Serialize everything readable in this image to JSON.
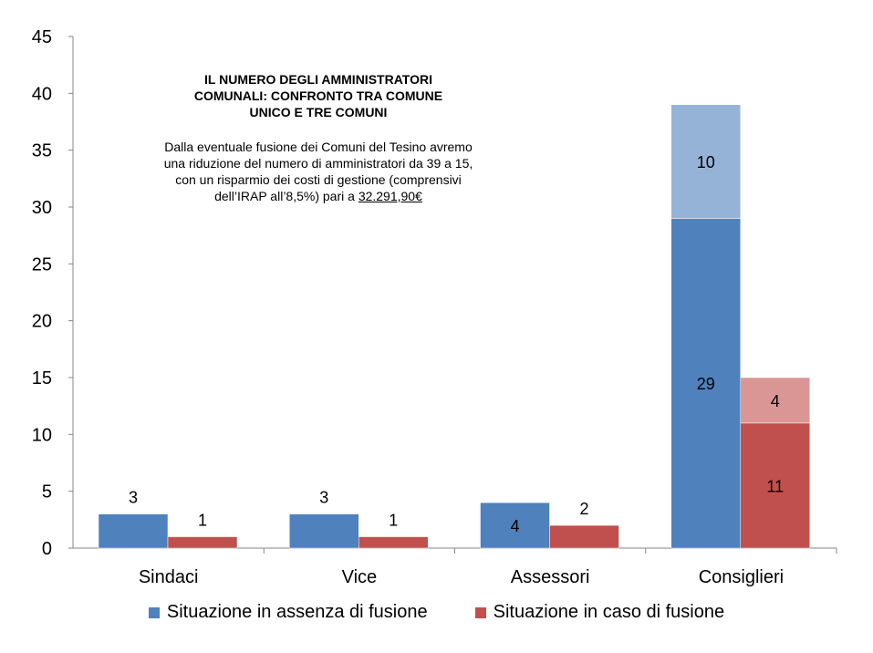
{
  "annotation": {
    "title": "IL NUMERO DEGLI AMMINISTRATORI COMUNALI: CONFRONTO TRA COMUNE UNICO E TRE COMUNI",
    "body": "Dalla eventuale fusione dei Comuni del Tesino avremo una riduzione del numero di amministratori da 39 a 15, con un risparmio dei costi di gestione (comprensivi dell’IRAP all’8,5%) pari a",
    "amount": "32.291,90€"
  },
  "colors": {
    "blue": "#4f81bd",
    "blue_light": "#95b3d7",
    "red": "#c0504d",
    "red_light": "#d99694",
    "axis": "#868686"
  },
  "chart_data": {
    "type": "bar",
    "stacked": true,
    "categories": [
      "Sindaci",
      "Vice",
      "Assessori",
      "Consiglieri"
    ],
    "ylim": [
      0,
      45
    ],
    "yticks": [
      0,
      5,
      10,
      15,
      20,
      25,
      30,
      35,
      40,
      45
    ],
    "grid": false,
    "legend_position": "bottom",
    "series": [
      {
        "name": "Situazione in assenza di fusione",
        "color": "#4f81bd",
        "segments": [
          {
            "values": [
              3,
              3,
              4,
              29
            ],
            "color": "#4f81bd"
          },
          {
            "values": [
              0,
              0,
              0,
              10
            ],
            "color": "#95b3d7"
          }
        ]
      },
      {
        "name": "Situazione in caso di fusione",
        "color": "#c0504d",
        "segments": [
          {
            "values": [
              1,
              1,
              2,
              11
            ],
            "color": "#c0504d"
          },
          {
            "values": [
              0,
              0,
              0,
              4
            ],
            "color": "#d99694"
          }
        ]
      }
    ]
  }
}
